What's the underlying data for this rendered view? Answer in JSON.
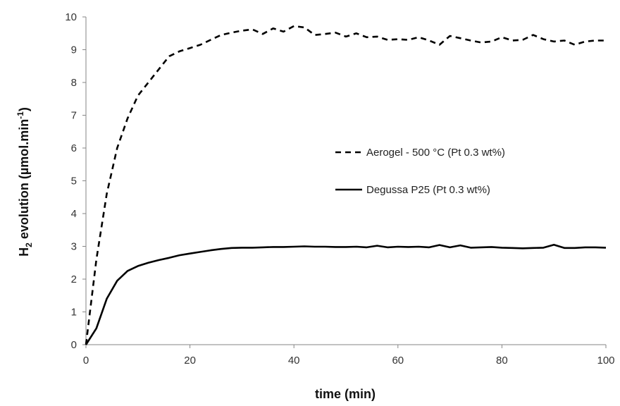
{
  "chart_data": {
    "type": "line",
    "xlabel": "time (min)",
    "ylabel": {
      "prefix": "H",
      "sub": "2",
      "mid": " evolution (µmol.min",
      "sup": "-1",
      "suffix": ")"
    },
    "xlim": [
      0,
      100
    ],
    "ylim": [
      0,
      10
    ],
    "xticks": [
      "0",
      "20",
      "40",
      "60",
      "80",
      "100"
    ],
    "yticks": [
      "0",
      "1",
      "2",
      "3",
      "4",
      "5",
      "6",
      "7",
      "8",
      "9",
      "10"
    ],
    "grid": false,
    "legend_position": "center-right",
    "series": [
      {
        "name": "Aerogel - 500 °C (Pt 0.3 wt%)",
        "style": "dashed",
        "color": "#000000",
        "x": [
          0,
          2,
          4,
          6,
          8,
          10,
          12,
          14,
          16,
          18,
          20,
          22,
          24,
          26,
          28,
          30,
          32,
          34,
          36,
          38,
          40,
          42,
          44,
          46,
          48,
          50,
          52,
          54,
          56,
          58,
          60,
          62,
          64,
          66,
          68,
          70,
          72,
          74,
          76,
          78,
          80,
          82,
          84,
          86,
          88,
          90,
          92,
          94,
          96,
          98,
          100
        ],
        "y": [
          0,
          2.6,
          4.6,
          6.0,
          6.9,
          7.6,
          8.0,
          8.4,
          8.8,
          8.95,
          9.05,
          9.15,
          9.3,
          9.45,
          9.52,
          9.58,
          9.62,
          9.48,
          9.65,
          9.55,
          9.72,
          9.68,
          9.45,
          9.48,
          9.52,
          9.4,
          9.5,
          9.38,
          9.4,
          9.3,
          9.32,
          9.3,
          9.38,
          9.28,
          9.15,
          9.42,
          9.35,
          9.28,
          9.22,
          9.25,
          9.38,
          9.28,
          9.3,
          9.45,
          9.32,
          9.25,
          9.28,
          9.15,
          9.25,
          9.28,
          9.28
        ]
      },
      {
        "name": "Degussa P25 (Pt 0.3 wt%)",
        "style": "solid",
        "color": "#000000",
        "x": [
          0,
          2,
          4,
          6,
          8,
          10,
          12,
          14,
          16,
          18,
          20,
          22,
          24,
          26,
          28,
          30,
          32,
          34,
          36,
          38,
          40,
          42,
          44,
          46,
          48,
          50,
          52,
          54,
          56,
          58,
          60,
          62,
          64,
          66,
          68,
          70,
          72,
          74,
          76,
          78,
          80,
          82,
          84,
          86,
          88,
          90,
          92,
          94,
          96,
          98,
          100
        ],
        "y": [
          0,
          0.5,
          1.4,
          1.95,
          2.25,
          2.4,
          2.5,
          2.58,
          2.65,
          2.73,
          2.78,
          2.83,
          2.88,
          2.92,
          2.95,
          2.96,
          2.96,
          2.97,
          2.98,
          2.98,
          2.99,
          3.0,
          2.99,
          2.99,
          2.98,
          2.98,
          2.99,
          2.97,
          3.02,
          2.97,
          2.99,
          2.98,
          2.99,
          2.97,
          3.04,
          2.97,
          3.03,
          2.96,
          2.97,
          2.98,
          2.96,
          2.95,
          2.94,
          2.95,
          2.96,
          3.05,
          2.95,
          2.95,
          2.97,
          2.97,
          2.96
        ]
      }
    ]
  }
}
